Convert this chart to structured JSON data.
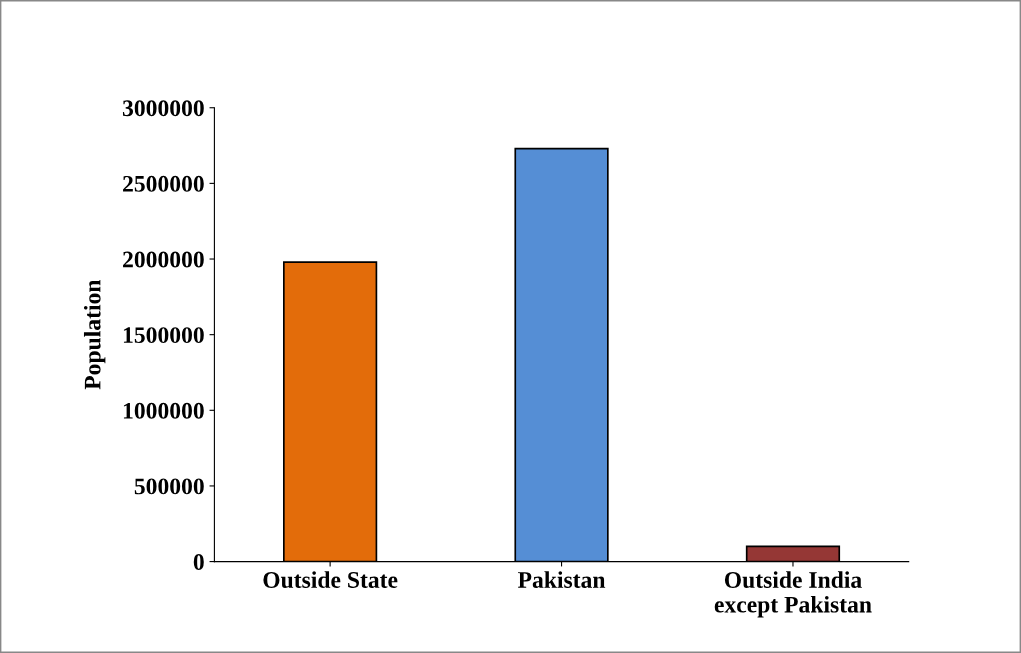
{
  "chart_data": {
    "type": "bar",
    "ylabel": "Population",
    "categories": [
      "Outside State",
      "Pakistan",
      "Outside India\nexcept Pakistan"
    ],
    "values": [
      1980000,
      2730000,
      100000
    ],
    "colors": [
      "#e36c0a",
      "#558ed5",
      "#953735"
    ],
    "ylim": [
      0,
      3000000
    ],
    "yticks": [
      0,
      500000,
      1000000,
      1500000,
      2000000,
      2500000,
      3000000
    ],
    "grid": false,
    "legend": false
  }
}
